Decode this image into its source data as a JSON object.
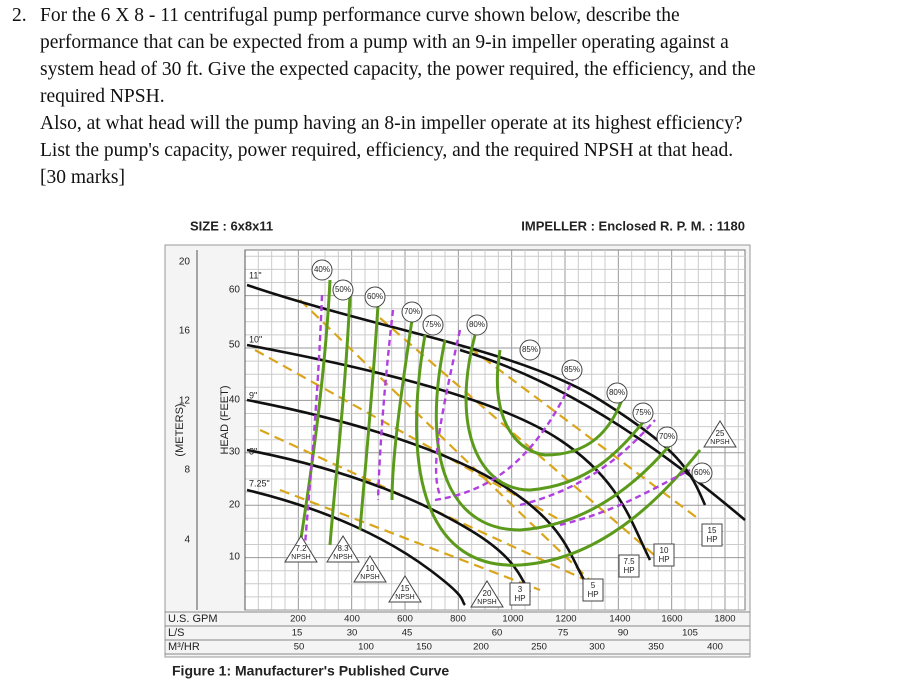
{
  "question": {
    "number": "2.",
    "lines": [
      "For the 6 X 8 - 11 centrifugal pump performance curve shown below, describe the",
      "performance that can be expected from a pump with an 9-in impeller operating against a",
      "system head of 30 ft. Give the expected capacity, the power required, the efficiency, and the",
      "required NPSH.",
      "Also, at what head will the pump having an 8-in impeller operate at its highest efficiency?",
      "List the pump's capacity, power required, efficiency, and the required NPSH at that head.",
      "[30 marks]"
    ]
  },
  "figure": {
    "size": "SIZE : 6x8x11",
    "impeller": "IMPELLER : Enclosed R. P. M. : 1180",
    "y_label_meters": "(METERS)",
    "y_label_feet": "HEAD (FEET)",
    "meters_ticks": [
      "20",
      "16",
      "12",
      "8",
      "4"
    ],
    "feet_ticks": [
      "60",
      "50",
      "40",
      "30",
      "20",
      "10"
    ],
    "impeller_labels": [
      "11\"",
      "10\"",
      "9\"",
      "8\"",
      "7.25\""
    ],
    "efficiency_labels": [
      "40%",
      "50%",
      "60%",
      "70%",
      "75%",
      "80%",
      "85%",
      "85%",
      "80%",
      "75%",
      "70%",
      "60%"
    ],
    "npsh_labels": [
      {
        "value": "7.2",
        "unit": "NPSH"
      },
      {
        "value": "8.3",
        "unit": "NPSH"
      },
      {
        "value": "10",
        "unit": "NPSH"
      },
      {
        "value": "15",
        "unit": "NPSH"
      },
      {
        "value": "20",
        "unit": "NPSH"
      },
      {
        "value": "25",
        "unit": "NPSH"
      }
    ],
    "hp_labels": [
      {
        "value": "3",
        "unit": "HP"
      },
      {
        "value": "5",
        "unit": "HP"
      },
      {
        "value": "7.5",
        "unit": "HP"
      },
      {
        "value": "10",
        "unit": "HP"
      },
      {
        "value": "15",
        "unit": "HP"
      }
    ],
    "x_rows": [
      {
        "label": "U.S. GPM",
        "ticks": [
          "200",
          "400",
          "600",
          "800",
          "1000",
          "1200",
          "1400",
          "1600",
          "1800"
        ]
      },
      {
        "label": "L/S",
        "ticks": [
          "15",
          "30",
          "45",
          "60",
          "75",
          "90",
          "105"
        ]
      },
      {
        "label": "M³/HR",
        "ticks": [
          "50",
          "100",
          "150",
          "200",
          "250",
          "300",
          "350",
          "400"
        ]
      }
    ],
    "caption": "Figure 1: Manufacturer's Published Curve"
  }
}
